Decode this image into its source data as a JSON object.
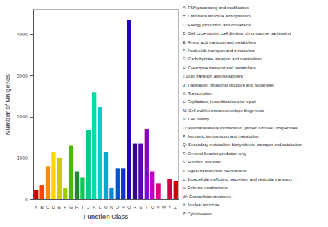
{
  "chart_data": {
    "type": "bar",
    "xlabel": "Function Class",
    "ylabel": "Number of Unigenes",
    "categories": [
      "A",
      "B",
      "C",
      "D",
      "E",
      "F",
      "G",
      "H",
      "I",
      "J",
      "K",
      "L",
      "M",
      "N",
      "O",
      "P",
      "Q",
      "R",
      "S",
      "T",
      "U",
      "V",
      "W",
      "Y",
      "Z"
    ],
    "values": [
      230,
      350,
      800,
      1150,
      1000,
      270,
      1300,
      680,
      530,
      1680,
      2600,
      2250,
      1150,
      280,
      750,
      750,
      4350,
      1350,
      1350,
      1700,
      680,
      380,
      10,
      500,
      450
    ],
    "colors": [
      "#cc0000",
      "#ff4500",
      "#ff8c00",
      "#ffd700",
      "#cccc00",
      "#99cc00",
      "#44bb00",
      "#228833",
      "#00cc55",
      "#00cc88",
      "#00ddaa",
      "#00cccc",
      "#00aacc",
      "#0088dd",
      "#0055cc",
      "#1133cc",
      "#2200bb",
      "#330099",
      "#5500bb",
      "#8800cc",
      "#bb00bb",
      "#dd0088",
      "#cc0055",
      "#cc0044",
      "#cc0000"
    ],
    "ylim": [
      0,
      4600
    ],
    "yticks": [
      0,
      1000,
      2000,
      3000,
      4000
    ],
    "grid": false,
    "annotations": [
      "A: RNA processing and modification",
      "B: Chromatin structure and dynamics",
      "C: Energy production and conversion",
      "D: Cell cycle control, cell division, chromosome partitioning",
      "E: Amino acid transport and metabolism",
      "F: Nucleotide transport and metabolism",
      "G: Carbohydrate transport and metabolism",
      "H: Coenzyme transport and metabolism",
      "I: Lipid transport and metabolism",
      "J: Translation, ribosomal structure and biogenesis",
      "K: Transcription",
      "L: Replication, recombination and repair",
      "M: Cell wall/membrane/envelope biogenesis",
      "N: Cell motility",
      "O: Posttranslational modification, protein turnover, chaperones",
      "P: Inorganic ion transport and metabolism",
      "Q: Secondary metabolites biosynthesis, transport and catabolism",
      "R: General function prediction only",
      "S: Function unknown",
      "T: Signal transduction mechanisms",
      "U: Intracellular trafficking, secretion, and vesicular transport",
      "V: Defense mechanisms",
      "W: Extracellular structures",
      "Y: Nuclear structure",
      "Z: Cytoskeleton"
    ]
  }
}
